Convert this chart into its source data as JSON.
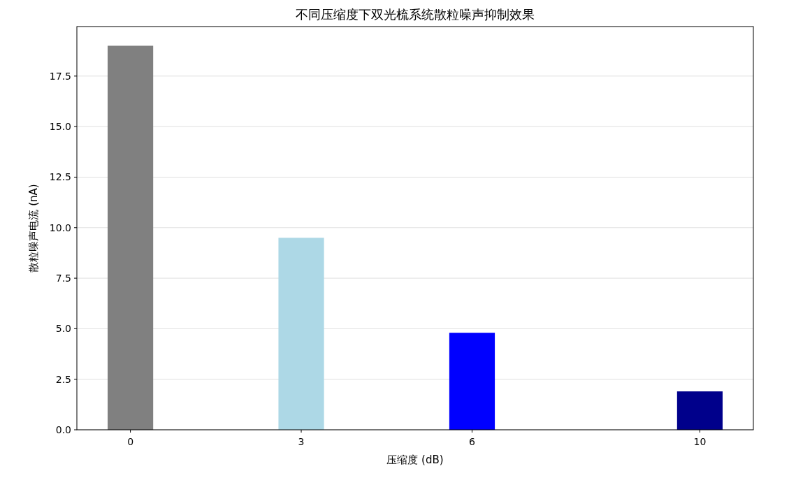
{
  "chart_data": {
    "type": "bar",
    "title": "不同压缩度下双光梳系统散粒噪声抑制效果",
    "xlabel": "压缩度 (dB)",
    "ylabel": "散粒噪声电流 (nA)",
    "x": [
      0,
      3,
      6,
      10
    ],
    "values": [
      19.0,
      9.5,
      4.8,
      1.9
    ],
    "colors": [
      "#808080",
      "#add8e6",
      "#0000ff",
      "#00008b"
    ],
    "xlim": [
      -0.94,
      10.94
    ],
    "xticks": [
      0,
      3,
      6,
      10
    ],
    "ylim": [
      0,
      19.95
    ],
    "yticks": [
      {
        "value": 0,
        "label": "0.0"
      },
      {
        "value": 2.5,
        "label": "2.5"
      },
      {
        "value": 5,
        "label": "5.0"
      },
      {
        "value": 7.5,
        "label": "7.5"
      },
      {
        "value": 10,
        "label": "10.0"
      },
      {
        "value": 12.5,
        "label": "12.5"
      },
      {
        "value": 15,
        "label": "15.0"
      },
      {
        "value": 17.5,
        "label": "17.5"
      }
    ],
    "grid": "y"
  }
}
